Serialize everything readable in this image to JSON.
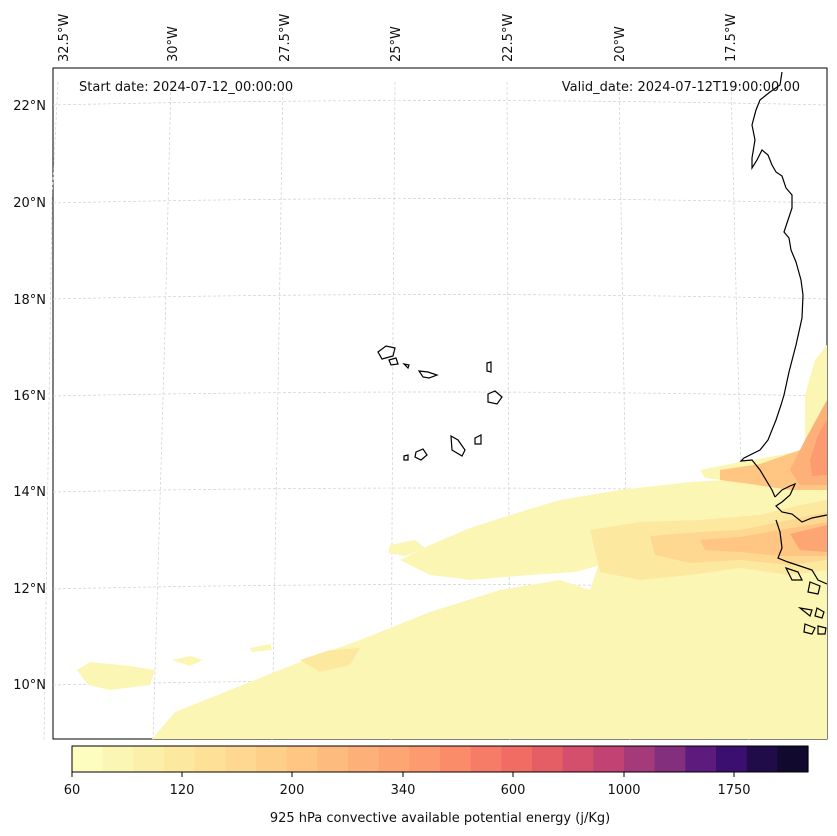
{
  "map": {
    "start_date_label": "Start date: 2024-07-12_00:00:00",
    "valid_date_label": "Valid_date: 2024-07-12T19:00:00.00",
    "lon_labels": [
      "32.5°W",
      "30°W",
      "27.5°W",
      "25°W",
      "22.5°W",
      "20°W",
      "17.5°W"
    ],
    "lat_labels": [
      "22°N",
      "20°N",
      "18°N",
      "16°N",
      "14°N",
      "12°N",
      "10°N"
    ]
  },
  "colorbar": {
    "label": "925 hPa convective available potential energy (j/Kg)",
    "tick_labels": [
      "60",
      "120",
      "200",
      "340",
      "600",
      "1000",
      "1750"
    ],
    "levels": [
      60,
      80,
      100,
      120,
      140,
      160,
      200,
      240,
      280,
      340,
      400,
      480,
      600,
      700,
      850,
      1000,
      1200,
      1450,
      1750,
      2100,
      2500
    ],
    "colors": [
      "#fcfdbf",
      "#fcf6b4",
      "#fcefaa",
      "#fde8a0",
      "#fee097",
      "#fed890",
      "#fecf89",
      "#fec583",
      "#febb7e",
      "#feb079",
      "#fea574",
      "#fd9a6f",
      "#fb8c6a",
      "#f77c67",
      "#f16d63",
      "#e55e66",
      "#d44f6c",
      "#c24373",
      "#a43a7a",
      "#842e7e",
      "#5d1b7e",
      "#3b0f70",
      "#1f0c48",
      "#120a2e"
    ]
  }
}
